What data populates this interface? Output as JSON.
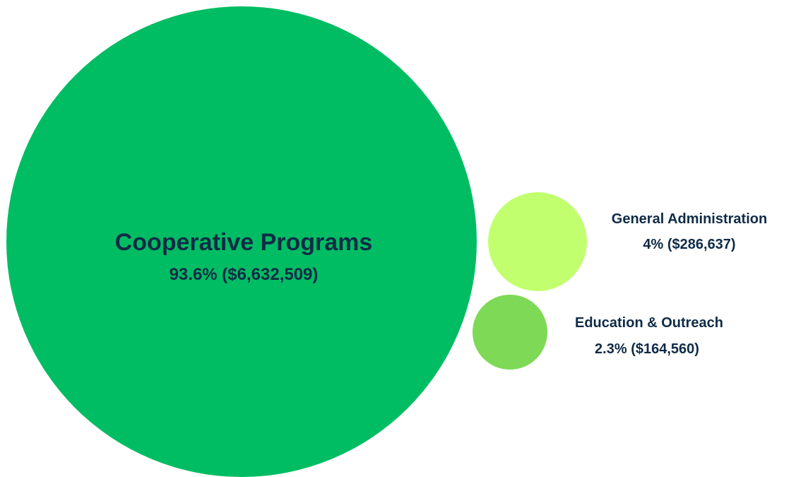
{
  "chart_data": {
    "type": "bubble",
    "series": [
      {
        "name": "Cooperative Programs",
        "label": "93.6% ($6,632,509)",
        "percent": 93.6,
        "value": 6632509,
        "color": "#00bd63"
      },
      {
        "name": "General Administration",
        "label": "4% ($286,637)",
        "percent": 4,
        "value": 286637,
        "color": "#c2ff6e"
      },
      {
        "name": "Education & Outreach",
        "label": "2.3% ($164,560)",
        "percent": 2.3,
        "value": 164560,
        "color": "#7ed957"
      }
    ]
  }
}
